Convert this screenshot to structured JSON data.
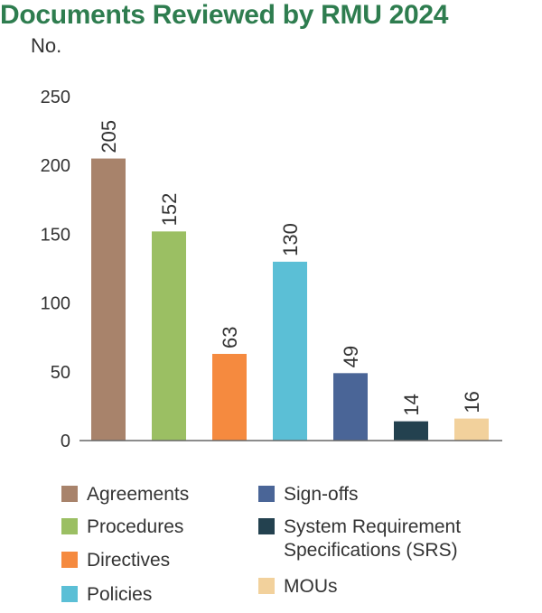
{
  "chart_data": {
    "type": "bar",
    "title": "Documents Reviewed by RMU 2024",
    "ylabel": "No.",
    "ylim": [
      0,
      250
    ],
    "yticks": [
      0,
      50,
      100,
      150,
      200,
      250
    ],
    "grid": false,
    "legend_placement": "bottom",
    "categories": [
      "Agreements",
      "Procedures",
      "Directives",
      "Policies",
      "Sign-offs",
      "System Requirement Specifications (SRS)",
      "MOUs"
    ],
    "values": [
      205,
      152,
      63,
      130,
      49,
      14,
      16
    ],
    "colors": [
      "#a8836b",
      "#9bbf63",
      "#f58a3f",
      "#5bbfd6",
      "#4a6597",
      "#23414f",
      "#f2d19c"
    ]
  },
  "legend": {
    "col1": [
      "Agreements",
      "Procedures",
      "Directives",
      "Policies"
    ],
    "col2": [
      "Sign-offs",
      "System Requirement\nSpecifications (SRS)",
      "MOUs"
    ]
  },
  "colors": {
    "title": "#2e7d4f",
    "axis": "#555555"
  }
}
